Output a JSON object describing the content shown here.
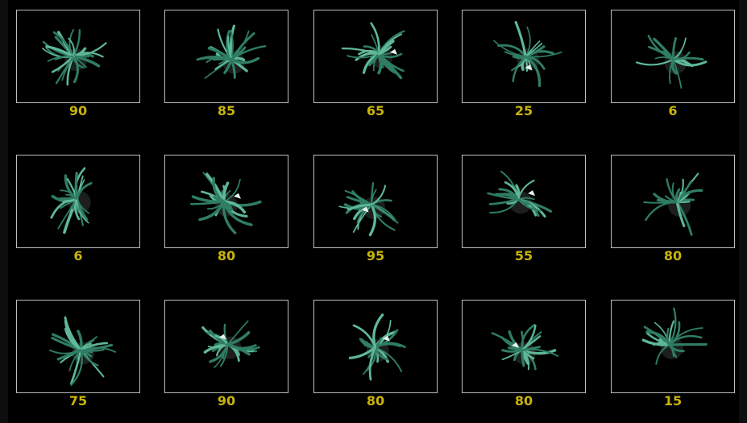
{
  "colors": {
    "score_text": "#c8b40a",
    "frame_border": "#bdbdbd",
    "background": "#000000",
    "plant_fill": "#2f7d64",
    "plant_edge": "#5fb896",
    "highlight": "#e8f3ee"
  },
  "images": [
    {
      "score": "90",
      "content": "top-down-plant-photo"
    },
    {
      "score": "85",
      "content": "top-down-plant-photo"
    },
    {
      "score": "65",
      "content": "top-down-plant-photo"
    },
    {
      "score": "25",
      "content": "top-down-plant-photo"
    },
    {
      "score": "6",
      "content": "top-down-plant-photo"
    },
    {
      "score": "6",
      "content": "top-down-plant-photo"
    },
    {
      "score": "80",
      "content": "top-down-plant-photo"
    },
    {
      "score": "95",
      "content": "top-down-plant-photo"
    },
    {
      "score": "55",
      "content": "top-down-plant-photo"
    },
    {
      "score": "80",
      "content": "top-down-plant-photo"
    },
    {
      "score": "75",
      "content": "top-down-plant-photo"
    },
    {
      "score": "90",
      "content": "top-down-plant-photo"
    },
    {
      "score": "80",
      "content": "top-down-plant-photo"
    },
    {
      "score": "80",
      "content": "top-down-plant-photo"
    },
    {
      "score": "15",
      "content": "top-down-plant-photo"
    }
  ]
}
